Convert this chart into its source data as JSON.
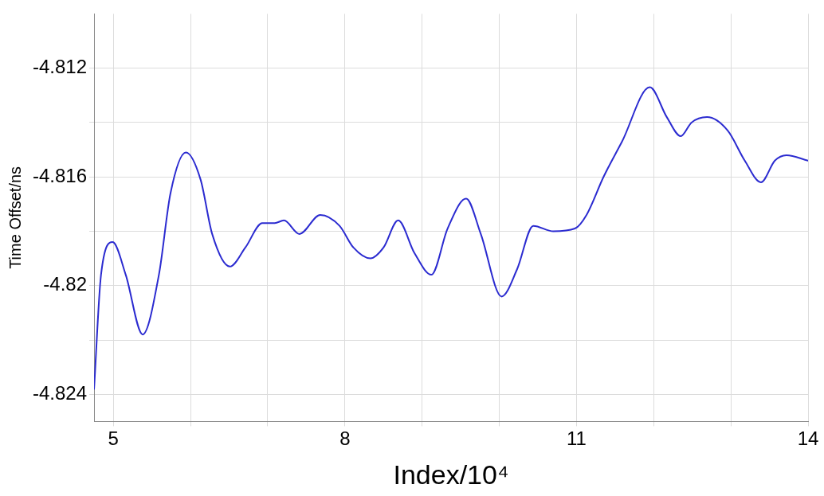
{
  "chart_data": {
    "type": "line",
    "xlabel": "Index/10⁴",
    "ylabel": "Time Offset/ns",
    "xlim": [
      4.75,
      14
    ],
    "ylim": [
      -4.825,
      -4.81
    ],
    "xticks": [
      5,
      {
        "value": 6,
        "label": null
      },
      {
        "value": 7,
        "label": null
      },
      8,
      {
        "value": 9,
        "label": null
      },
      {
        "value": 10,
        "label": null
      },
      11,
      {
        "value": 12,
        "label": null
      },
      {
        "value": 13,
        "label": null
      },
      14
    ],
    "yticks": [
      {
        "value": -4.824,
        "label": "-4.824"
      },
      {
        "value": -4.822,
        "label": null
      },
      {
        "value": -4.82,
        "label": "-4.82"
      },
      {
        "value": -4.818,
        "label": null
      },
      {
        "value": -4.816,
        "label": "-4.816"
      },
      {
        "value": -4.814,
        "label": null
      },
      {
        "value": -4.812,
        "label": "-4.812"
      }
    ],
    "grid": true,
    "marker": "none",
    "line_style": "solid",
    "series": [
      {
        "color": "#2b2bd0",
        "x": [
          4.75,
          4.84,
          4.99,
          5.16,
          5.38,
          5.59,
          5.74,
          5.94,
          6.13,
          6.28,
          6.51,
          6.71,
          6.93,
          7.09,
          7.21,
          7.41,
          7.68,
          7.93,
          8.11,
          8.33,
          8.5,
          8.69,
          8.9,
          9.12,
          9.33,
          9.57,
          9.76,
          10.03,
          10.23,
          10.44,
          10.7,
          10.98,
          11.13,
          11.35,
          11.59,
          11.95,
          12.17,
          12.35,
          12.49,
          12.69,
          12.96,
          13.18,
          13.39,
          13.57,
          13.72,
          14.0
        ],
        "values": [
          -4.8238,
          -4.8196,
          -4.8184,
          -4.8196,
          -4.8218,
          -4.8196,
          -4.8166,
          -4.8151,
          -4.8161,
          -4.8181,
          -4.8193,
          -4.8186,
          -4.8177,
          -4.8177,
          -4.8176,
          -4.8181,
          -4.8174,
          -4.8178,
          -4.8186,
          -4.819,
          -4.8186,
          -4.8176,
          -4.8188,
          -4.8196,
          -4.8179,
          -4.8168,
          -4.8181,
          -4.8204,
          -4.8194,
          -4.8178,
          -4.818,
          -4.8179,
          -4.8174,
          -4.816,
          -4.8147,
          -4.8127,
          -4.8138,
          -4.8145,
          -4.814,
          -4.8138,
          -4.8143,
          -4.8154,
          -4.8162,
          -4.8154,
          -4.8152,
          -4.8154
        ]
      }
    ]
  }
}
